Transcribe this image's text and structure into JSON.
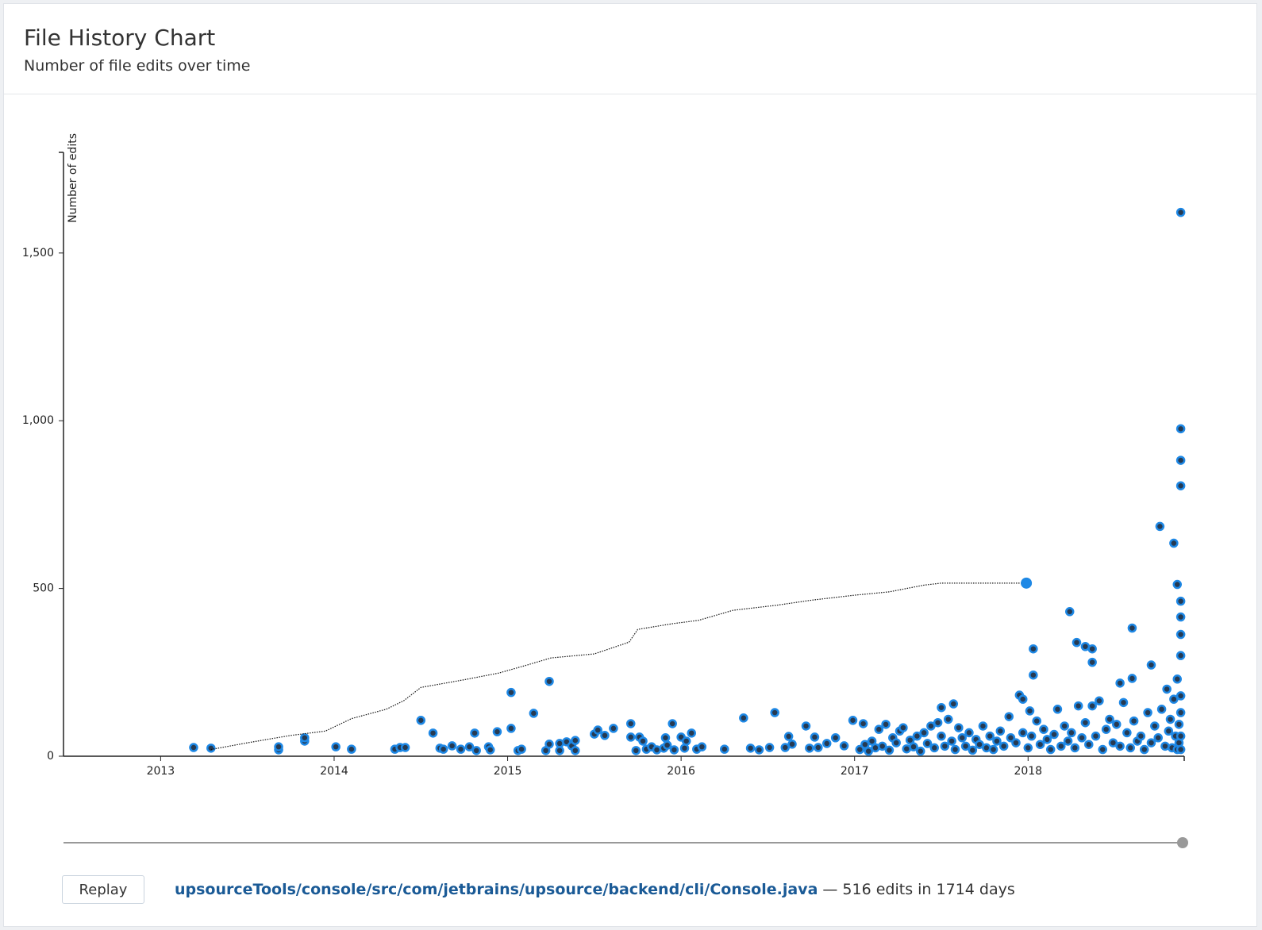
{
  "header": {
    "title": "File History Chart",
    "subtitle": "Number of file edits over time"
  },
  "chart_data": {
    "type": "scatter",
    "y_label": "Number of edits",
    "xlim": [
      2012.44,
      2018.9
    ],
    "ylim": [
      0,
      1800
    ],
    "xticks": [
      2013,
      2014,
      2015,
      2016,
      2017,
      2018
    ],
    "yticks": [
      0,
      500,
      {
        "value": 1000,
        "label": "1,000"
      },
      {
        "value": 1500,
        "label": "1,500"
      }
    ],
    "series": [
      {
        "type": "scatter",
        "color": "#1e88e5",
        "x": [
          2013.19,
          2013.29,
          2013.68,
          2013.68,
          2013.83,
          2013.83,
          2014.01,
          2014.1,
          2014.35,
          2014.38,
          2014.41,
          2014.5,
          2014.57,
          2014.61,
          2014.63,
          2014.68,
          2014.73,
          2014.78,
          2014.81,
          2014.82,
          2014.89,
          2014.9,
          2014.94,
          2015.02,
          2015.02,
          2015.06,
          2015.08,
          2015.15,
          2015.22,
          2015.24,
          2015.24,
          2015.3,
          2015.3,
          2015.34,
          2015.37,
          2015.39,
          2015.39,
          2015.5,
          2015.52,
          2015.56,
          2015.61,
          2015.71,
          2015.71,
          2015.74,
          2015.76,
          2015.78,
          2015.8,
          2015.83,
          2015.86,
          2015.9,
          2015.91,
          2015.92,
          2015.95,
          2015.96,
          2016.0,
          2016.02,
          2016.03,
          2016.06,
          2016.09,
          2016.12,
          2016.25,
          2016.36,
          2016.4,
          2016.45,
          2016.51,
          2016.54,
          2016.6,
          2016.62,
          2016.64,
          2016.72,
          2016.74,
          2016.77,
          2016.79,
          2016.84,
          2016.89,
          2016.94,
          2016.99,
          2017.05,
          2017.03,
          2017.06,
          2017.08,
          2017.1,
          2017.12,
          2017.14,
          2017.16,
          2017.18,
          2017.2,
          2017.22,
          2017.24,
          2017.26,
          2017.28,
          2017.3,
          2017.32,
          2017.34,
          2017.36,
          2017.38,
          2017.4,
          2017.42,
          2017.44,
          2017.46,
          2017.48,
          2017.5,
          2017.5,
          2017.52,
          2017.54,
          2017.56,
          2017.57,
          2017.58,
          2017.6,
          2017.62,
          2017.64,
          2017.66,
          2017.68,
          2017.7,
          2017.72,
          2017.74,
          2017.76,
          2017.78,
          2017.8,
          2017.82,
          2017.84,
          2017.86,
          2017.89,
          2017.9,
          2017.93,
          2017.95,
          2017.97,
          2017.97,
          2018.0,
          2018.01,
          2018.02,
          2018.03,
          2018.03,
          2018.05,
          2018.07,
          2018.09,
          2018.11,
          2018.13,
          2018.15,
          2018.17,
          2018.19,
          2018.21,
          2018.23,
          2018.24,
          2018.25,
          2018.27,
          2018.28,
          2018.29,
          2018.31,
          2018.33,
          2018.33,
          2018.35,
          2018.37,
          2018.37,
          2018.37,
          2018.39,
          2018.41,
          2018.43,
          2018.45,
          2018.47,
          2018.49,
          2018.51,
          2018.53,
          2018.53,
          2018.55,
          2018.57,
          2018.59,
          2018.6,
          2018.6,
          2018.61,
          2018.63,
          2018.65,
          2018.67,
          2018.69,
          2018.71,
          2018.71,
          2018.73,
          2018.75,
          2018.76,
          2018.77,
          2018.79,
          2018.8,
          2018.81,
          2018.82,
          2018.83,
          2018.84,
          2018.84,
          2018.85,
          2018.86,
          2018.86,
          2018.86,
          2018.87,
          2018.87,
          2018.88,
          2018.88,
          2018.88,
          2018.88,
          2018.88,
          2018.88,
          2018.88,
          2018.88,
          2018.88,
          2018.88,
          2018.88,
          2018.88
        ],
        "values": [
          26,
          24,
          19,
          28,
          45,
          55,
          28,
          21,
          21,
          26,
          26,
          107,
          69,
          24,
          21,
          31,
          21,
          28,
          69,
          17,
          28,
          19,
          73,
          83,
          190,
          17,
          21,
          128,
          17,
          36,
          223,
          38,
          17,
          43,
          31,
          47,
          17,
          66,
          78,
          62,
          83,
          97,
          57,
          17,
          57,
          45,
          21,
          28,
          19,
          24,
          55,
          33,
          97,
          19,
          57,
          24,
          45,
          69,
          21,
          28,
          21,
          114,
          24,
          19,
          26,
          130,
          26,
          59,
          36,
          90,
          24,
          57,
          26,
          38,
          55,
          31,
          107,
          97,
          20,
          35,
          15,
          45,
          25,
          80,
          30,
          95,
          18,
          55,
          40,
          75,
          85,
          22,
          48,
          28,
          60,
          15,
          70,
          38,
          90,
          25,
          100,
          145,
          60,
          30,
          110,
          45,
          156,
          20,
          85,
          55,
          30,
          70,
          18,
          50,
          35,
          90,
          25,
          60,
          20,
          45,
          75,
          30,
          118,
          55,
          40,
          182,
          170,
          70,
          25,
          135,
          60,
          320,
          242,
          105,
          35,
          80,
          50,
          20,
          65,
          140,
          30,
          90,
          45,
          431,
          70,
          25,
          339,
          150,
          55,
          327,
          100,
          35,
          320,
          280,
          150,
          60,
          165,
          20,
          80,
          110,
          40,
          95,
          218,
          30,
          160,
          70,
          25,
          232,
          382,
          105,
          45,
          60,
          20,
          130,
          272,
          40,
          90,
          55,
          685,
          140,
          30,
          200,
          75,
          110,
          25,
          635,
          170,
          60,
          512,
          230,
          20,
          95,
          40,
          462,
          415,
          363,
          806,
          882,
          976,
          1621,
          300,
          180,
          130,
          60,
          20
        ]
      },
      {
        "type": "line",
        "color": "#111111",
        "mark_last": true,
        "x": [
          2013.29,
          2013.5,
          2013.75,
          2013.95,
          2014.1,
          2014.3,
          2014.4,
          2014.5,
          2014.75,
          2014.95,
          2015.1,
          2015.25,
          2015.5,
          2015.7,
          2015.75,
          2015.95,
          2016.1,
          2016.3,
          2016.55,
          2016.75,
          2017.0,
          2017.2,
          2017.4,
          2017.5,
          2017.99
        ],
        "values": [
          20,
          40,
          62,
          75,
          112,
          140,
          165,
          205,
          228,
          248,
          270,
          293,
          305,
          340,
          378,
          395,
          405,
          435,
          450,
          465,
          480,
          490,
          510,
          516,
          516
        ]
      }
    ]
  },
  "footer": {
    "button": "Replay",
    "path": "upsourceTools/console/src/com/jetbrains/upsource/backend/cli/Console.java",
    "summary": "— 516 edits in 1714 days"
  }
}
